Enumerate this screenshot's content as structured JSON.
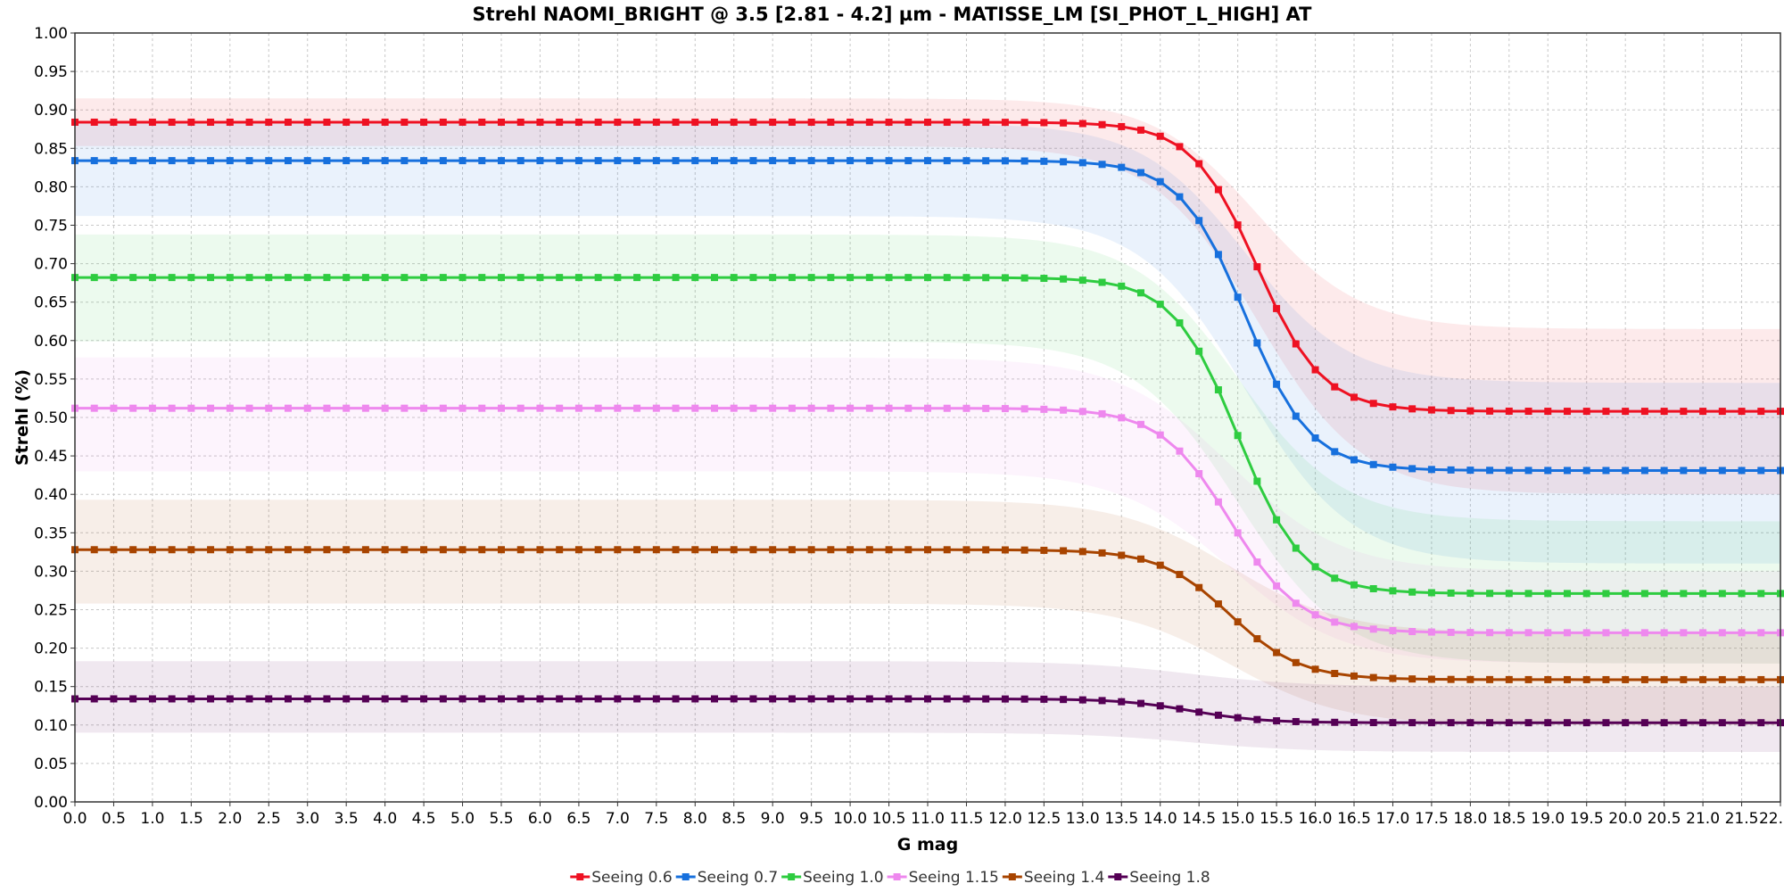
{
  "chart_data": {
    "type": "line",
    "title": "Strehl NAOMI_BRIGHT @ 3.5 [2.81 - 4.2] µm - MATISSE_LM [SI_PHOT_L_HIGH] AT",
    "xlabel": "G mag",
    "ylabel": "Strehl (%)",
    "xlim": [
      0.0,
      22.0
    ],
    "ylim": [
      0.0,
      1.0
    ],
    "x_step": 0.25,
    "x_ticks": [
      "0.0",
      "0.5",
      "1.0",
      "1.5",
      "2.0",
      "2.5",
      "3.0",
      "3.5",
      "4.0",
      "4.5",
      "5.0",
      "5.5",
      "6.0",
      "6.5",
      "7.0",
      "7.5",
      "8.0",
      "8.5",
      "9.0",
      "9.5",
      "10.0",
      "10.5",
      "11.0",
      "11.5",
      "12.0",
      "12.5",
      "13.0",
      "13.5",
      "14.0",
      "14.5",
      "15.0",
      "15.5",
      "16.0",
      "16.5",
      "17.0",
      "17.5",
      "18.0",
      "18.5",
      "19.0",
      "19.5",
      "20.0",
      "20.5",
      "21.0",
      "21.5",
      "22."
    ],
    "y_ticks": [
      "0.00",
      "0.05",
      "0.10",
      "0.15",
      "0.20",
      "0.25",
      "0.30",
      "0.35",
      "0.40",
      "0.45",
      "0.50",
      "0.55",
      "0.60",
      "0.65",
      "0.70",
      "0.75",
      "0.80",
      "0.85",
      "0.90",
      "0.95",
      "1.00"
    ],
    "grid": true,
    "legend_position": "bottom",
    "series": [
      {
        "name": "Seeing 0.6",
        "color": "#ee1122",
        "y_bright": 0.884,
        "y_faint": 0.508,
        "x_mid": 15.25,
        "width": 0.42,
        "band_bright": [
          0.853,
          0.915
        ],
        "band_faint": [
          0.4,
          0.615
        ]
      },
      {
        "name": "Seeing 0.7",
        "color": "#1770dd",
        "y_bright": 0.834,
        "y_faint": 0.431,
        "x_mid": 15.1,
        "width": 0.42,
        "band_bright": [
          0.762,
          0.883
        ],
        "band_faint": [
          0.31,
          0.545
        ]
      },
      {
        "name": "Seeing 1.0",
        "color": "#2ecc40",
        "y_bright": 0.682,
        "y_faint": 0.271,
        "x_mid": 15.0,
        "width": 0.42,
        "band_bright": [
          0.599,
          0.738
        ],
        "band_faint": [
          0.18,
          0.365
        ]
      },
      {
        "name": "Seeing 1.15",
        "color": "#ee88ee",
        "y_bright": 0.512,
        "y_faint": 0.22,
        "x_mid": 14.9,
        "width": 0.45,
        "band_bright": [
          0.43,
          0.578
        ],
        "band_faint": [
          0.18,
          0.3
        ]
      },
      {
        "name": "Seeing 1.4",
        "color": "#a84400",
        "y_bright": 0.328,
        "y_faint": 0.159,
        "x_mid": 14.9,
        "width": 0.45,
        "band_bright": [
          0.258,
          0.393
        ],
        "band_faint": [
          0.1,
          0.22
        ]
      },
      {
        "name": "Seeing 1.8",
        "color": "#550055",
        "y_bright": 0.134,
        "y_faint": 0.103,
        "x_mid": 14.4,
        "width": 0.45,
        "band_bright": [
          0.09,
          0.183
        ],
        "band_faint": [
          0.065,
          0.15
        ]
      }
    ]
  }
}
